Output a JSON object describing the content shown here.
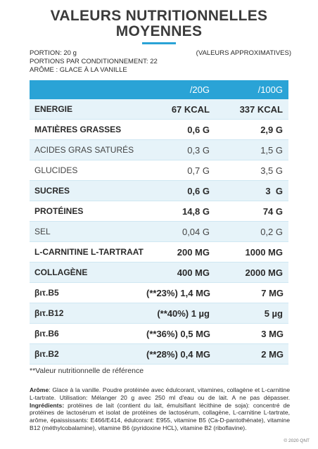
{
  "title": {
    "line1": "VALEURS NUTRITIONNELLES",
    "line2": "MOYENNES"
  },
  "meta": {
    "portion": "PORTION: 20 g",
    "approx": "(VALEURS APPROXIMATIVES)",
    "portions_per_pack": "PORTIONS PAR CONDITIONNEMENT: 22",
    "aroma": "ARÔME : GLACE À LA VANILLE"
  },
  "table": {
    "header": {
      "col1": "",
      "col2": "/20G",
      "col3": "/100G"
    },
    "rows": [
      {
        "label": "ENERGIE",
        "per20": "67 KCAL",
        "per100": "337 KCAL"
      },
      {
        "label": "MATIÈRES GRASSES",
        "per20": "0,6 G",
        "per100": "2,9 G"
      },
      {
        "label": "ACIDES GRAS SATURÉS",
        "per20": "0,3 G",
        "per100": "1,5 G"
      },
      {
        "label": "GLUCIDES",
        "per20": "0,7 G",
        "per100": "3,5 G"
      },
      {
        "label": "SUCRES",
        "per20": "0,6 G",
        "per100": "3  G"
      },
      {
        "label": "PROTÉINES",
        "per20": "14,8 G",
        "per100": "74 G"
      },
      {
        "label": "SEL",
        "per20": "0,04 G",
        "per100": "0,2 G"
      },
      {
        "label": "L-CARNITINE L-TARTRAAT",
        "per20": "200 MG",
        "per100": "1000 MG"
      },
      {
        "label": "COLLAGÈNE",
        "per20": "400 MG",
        "per100": "2000 MG"
      },
      {
        "label": "βιτ.Β5",
        "per20": "(**23%) 1,4 MG",
        "per100": "7 MG"
      },
      {
        "label": "βιτ.Β12",
        "per20": "(**40%) 1 µg",
        "per100": "5 µg"
      },
      {
        "label": "βιτ.Β6",
        "per20": "(**36%) 0,5 MG",
        "per100": "3 MG"
      },
      {
        "label": "βιτ.Β2",
        "per20": "(**28%) 0,4 MG",
        "per100": "2 MG"
      }
    ]
  },
  "note": "**Valeur nutritionnelle de référence",
  "ingredients": {
    "label": "Arôme",
    "text": ": Glace à la vanille. Poudre protéinée avec édulcorant, vitamines, collagène et L-carnitine L-tartrate. Utilisation: Mélanger 20 g avec 250 ml d'eau ou de lait. A ne pas dépasser. ",
    "ingr_label": "Ingrédients:",
    "ingr_text": " protéines de lait (contient du lait, émulsifiant lécithine de soja): concentré de protéines de lactosérum et isolat de protéines de lactosérum, collagène, L-carnitine L-tartrate, arôme, épaississants: E466/E414, édulcorant: E955, vitamine B5 (Ca-D-pantothénate), vitamine B12 (méthylcobalamine), vitamine B6 (pyridoxine HCL), vitamine B2 (riboflavine)."
  },
  "copyright": "© 2020 QNT",
  "colors": {
    "accent": "#2aa3d6",
    "shaded_row": "#e6f3f9"
  }
}
